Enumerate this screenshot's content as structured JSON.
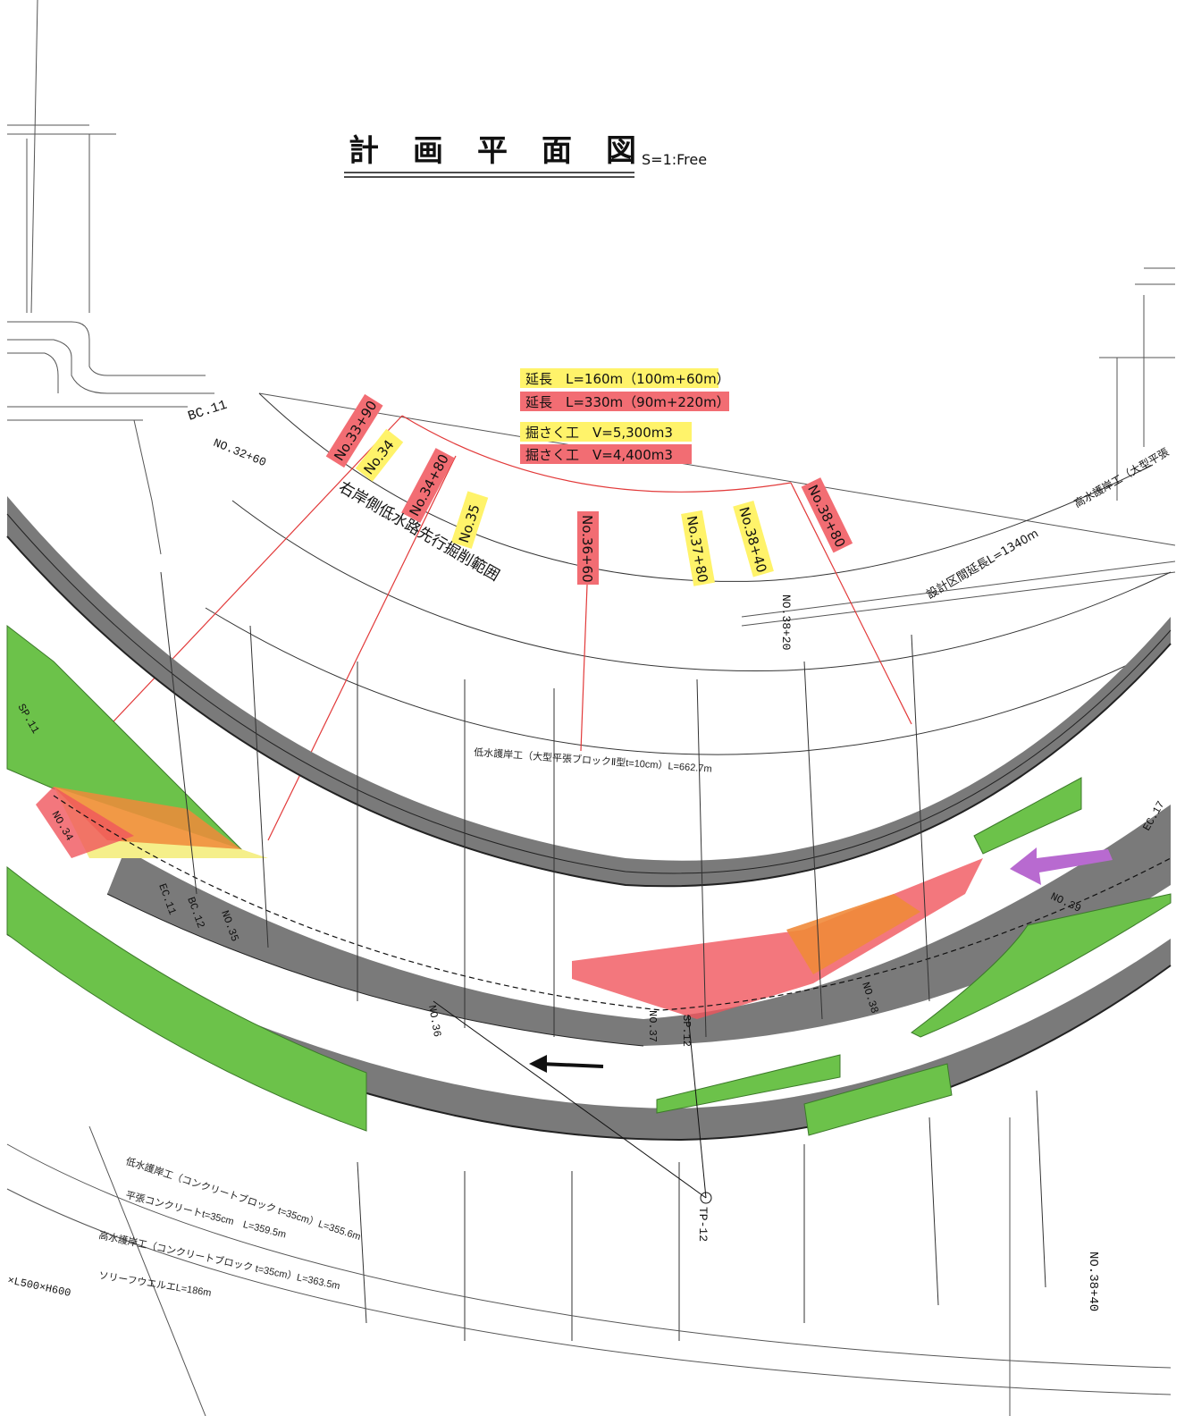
{
  "title": "計　画　平　面　図",
  "scale": "S=1:Free",
  "legend": [
    {
      "text": "延長　L=160m（100m+60m）",
      "color": "#fff36a"
    },
    {
      "text": "延長　L=330m（90m+220m）",
      "color": "#f26d73"
    },
    {
      "text": "掘さく工　V=5,300m3",
      "color": "#fff36a"
    },
    {
      "text": "掘さく工　V=4,400m3",
      "color": "#f26d73"
    }
  ],
  "station_tags": [
    {
      "text": "No.33+90",
      "color": "#f26d73"
    },
    {
      "text": "No.34",
      "color": "#fff36a"
    },
    {
      "text": "No.34+80",
      "color": "#f26d73"
    },
    {
      "text": "No.35",
      "color": "#fff36a"
    },
    {
      "text": "No.36+60",
      "color": "#f26d73"
    },
    {
      "text": "No.37+80",
      "color": "#fff36a"
    },
    {
      "text": "No.38+40",
      "color": "#fff36a"
    },
    {
      "text": "No.38+80",
      "color": "#f26d73"
    }
  ],
  "labels": {
    "excavation_range": "右岸側低水路先行掘削範囲",
    "bc11": "BC.11",
    "no32_60": "NO.32+60",
    "no38_20": "NO.38+20",
    "design_length": "設計区間延長L=1340m",
    "high_revet": "高水護岸工（大型平張",
    "low_revet": "低水護岸工（大型平張ブロックⅡ型t=10cm）L=662.7m",
    "ec17": "EC.17",
    "no39": "NO.39",
    "no38": "NO.38",
    "no37": "NO.37",
    "no36": "NO.36",
    "no35": "NO.35",
    "no34": "NO.34",
    "bc12": "BC.12",
    "ec11": "EC.11",
    "sp11": "SP.11",
    "sp12": "SP.12",
    "tp12": "TP-12",
    "no38_40_bottom": "NO.38+40",
    "foot1": "低水護岸工（コンクリートブロック t=35cm）L=355.6m",
    "foot2": "平張コンクリートt=35cm　L=359.5m",
    "foot3": "高水護岸工（コンクリートブロック t=35cm）L=363.5m",
    "foot4": "ソリーフウエルエL=186m",
    "box": "×L500×H600"
  },
  "colors": {
    "road_gray": "#7a7a7a",
    "green": "#6cc24a",
    "red_area": "#f0555c",
    "orange": "#f08a3a",
    "yellow": "#f5ef8a",
    "purple": "#b86ad0",
    "redline": "#e23a3a"
  }
}
